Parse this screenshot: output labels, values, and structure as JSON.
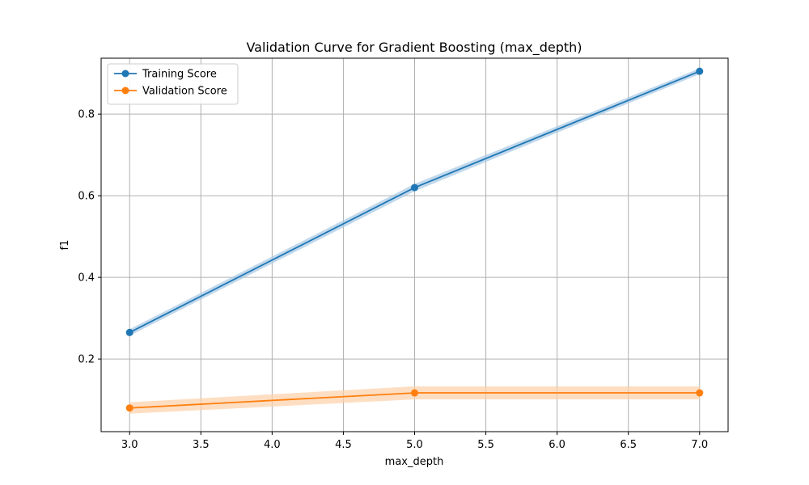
{
  "chart_data": {
    "type": "line",
    "title": "Validation Curve for Gradient Boosting (max_depth)",
    "xlabel": "max_depth",
    "ylabel": "f1",
    "x": [
      3.0,
      5.0,
      7.0
    ],
    "xlim": [
      2.8,
      7.2
    ],
    "ylim": [
      0.022,
      0.937
    ],
    "xticks": [
      3.0,
      3.5,
      4.0,
      4.5,
      5.0,
      5.5,
      6.0,
      6.5,
      7.0
    ],
    "xtick_labels": [
      "3.0",
      "3.5",
      "4.0",
      "4.5",
      "5.0",
      "5.5",
      "6.0",
      "6.5",
      "7.0"
    ],
    "yticks": [
      0.2,
      0.4,
      0.6,
      0.8
    ],
    "ytick_labels": [
      "0.2",
      "0.4",
      "0.6",
      "0.8"
    ],
    "grid": true,
    "legend_position": "top-left",
    "series": [
      {
        "name": "Training Score",
        "color": "#1f77b4",
        "band_color": "#a6c8e4",
        "values": [
          0.265,
          0.62,
          0.905
        ],
        "lower": [
          0.257,
          0.611,
          0.898
        ],
        "upper": [
          0.273,
          0.629,
          0.912
        ]
      },
      {
        "name": "Validation Score",
        "color": "#ff7f0e",
        "band_color": "#fdd0a8",
        "values": [
          0.08,
          0.117,
          0.117
        ],
        "lower": [
          0.066,
          0.101,
          0.101
        ],
        "upper": [
          0.094,
          0.133,
          0.133
        ]
      }
    ]
  }
}
